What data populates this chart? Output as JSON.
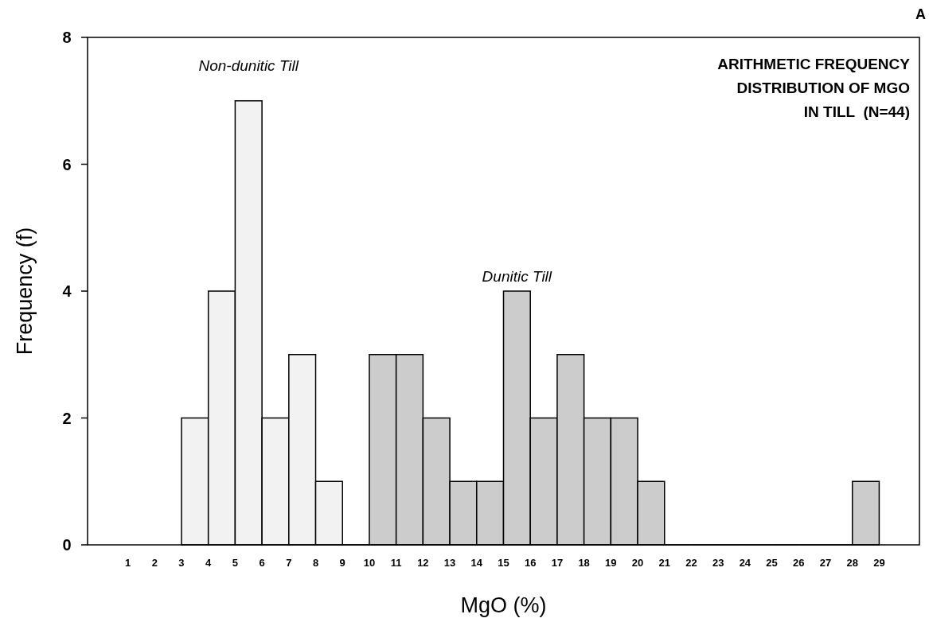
{
  "chart_data": {
    "type": "histogram",
    "title": "ARITHMETIC FREQUENCY\nDISTRIBUTION OF MGO\nIN TILL  (N=44)",
    "xlabel": "MgO (%)",
    "ylabel": "Frequency (f)",
    "bins": [
      3,
      4,
      5,
      6,
      7,
      8,
      9,
      10,
      11,
      12,
      13,
      14,
      15,
      16,
      17,
      18,
      19,
      20,
      21,
      22,
      23,
      24,
      25,
      26,
      27,
      28,
      29
    ],
    "series": [
      {
        "name": "Non-dunitic Till",
        "color": "#f2f2f2",
        "values": [
          2,
          4,
          7,
          2,
          3,
          1,
          null,
          null,
          null,
          null,
          null,
          null,
          null,
          null,
          null,
          null,
          null,
          null,
          null,
          null,
          null,
          null,
          null,
          null,
          null,
          null
        ]
      },
      {
        "name": "Dunitic Till",
        "color": "#cccccc",
        "values": [
          null,
          null,
          null,
          null,
          null,
          null,
          null,
          3,
          3,
          2,
          1,
          1,
          4,
          2,
          3,
          2,
          2,
          1,
          null,
          null,
          null,
          null,
          null,
          null,
          null,
          1
        ]
      }
    ],
    "xlim": [
      -0.5,
      30.5
    ],
    "xticks": [
      1,
      2,
      3,
      4,
      5,
      6,
      7,
      8,
      9,
      10,
      11,
      12,
      13,
      14,
      15,
      16,
      17,
      18,
      19,
      20,
      21,
      22,
      23,
      24,
      25,
      26,
      27,
      28,
      29
    ],
    "ylim": [
      0,
      8
    ],
    "yticks": [
      0,
      2,
      4,
      6,
      8
    ],
    "legend": false,
    "grid": false,
    "annotations": [
      "A"
    ]
  }
}
